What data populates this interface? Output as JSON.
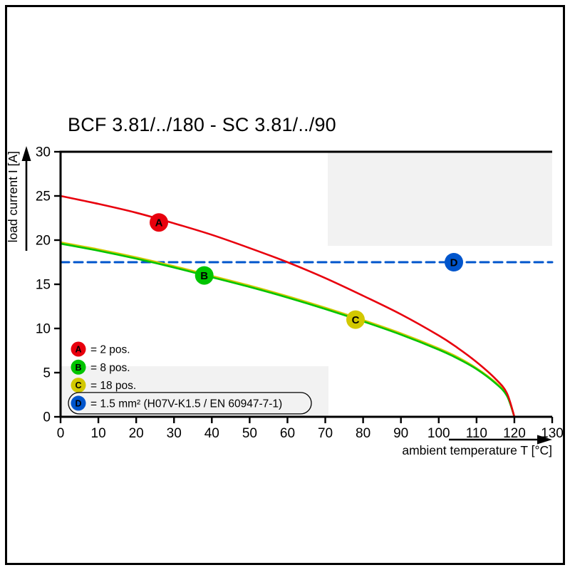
{
  "page": {
    "title": "BCF 3.81/../180 - SC 3.81/../90"
  },
  "chart_data": {
    "type": "line",
    "title": "BCF 3.81/../180 - SC 3.81/../90",
    "xlabel": "ambient temperature T [°C]",
    "ylabel": "load current I [A]",
    "xlim": [
      0,
      130
    ],
    "ylim": [
      0,
      30
    ],
    "x_ticks": [
      0,
      10,
      20,
      30,
      40,
      50,
      60,
      70,
      80,
      90,
      100,
      110,
      120,
      130
    ],
    "y_ticks": [
      0,
      5,
      10,
      15,
      20,
      25,
      30
    ],
    "grid": false,
    "legend_position": "bottom-left",
    "series": [
      {
        "name": "A",
        "label": "= 2 pos.",
        "color": "#e8000d",
        "style": "solid",
        "marker": {
          "x": 26,
          "y": 22
        },
        "points": [
          [
            0,
            25
          ],
          [
            10,
            24.1
          ],
          [
            20,
            23.1
          ],
          [
            30,
            21.9
          ],
          [
            40,
            20.6
          ],
          [
            50,
            19.1
          ],
          [
            60,
            17.5
          ],
          [
            70,
            15.7
          ],
          [
            80,
            13.7
          ],
          [
            90,
            11.6
          ],
          [
            100,
            9.2
          ],
          [
            105,
            7.8
          ],
          [
            110,
            6.2
          ],
          [
            115,
            4.3
          ],
          [
            118,
            2.7
          ],
          [
            120,
            0
          ]
        ]
      },
      {
        "name": "B",
        "label": "= 8 pos.",
        "color": "#00c400",
        "style": "solid",
        "marker": {
          "x": 38,
          "y": 16
        },
        "points": [
          [
            0,
            19.6
          ],
          [
            10,
            18.8
          ],
          [
            20,
            17.9
          ],
          [
            30,
            16.9
          ],
          [
            40,
            15.8
          ],
          [
            50,
            14.7
          ],
          [
            60,
            13.5
          ],
          [
            70,
            12.2
          ],
          [
            80,
            10.8
          ],
          [
            90,
            9.3
          ],
          [
            100,
            7.6
          ],
          [
            105,
            6.6
          ],
          [
            110,
            5.4
          ],
          [
            115,
            3.8
          ],
          [
            118,
            2.4
          ],
          [
            120,
            0
          ]
        ]
      },
      {
        "name": "C",
        "label": "= 18 pos.",
        "color": "#d2c800",
        "style": "solid",
        "marker": {
          "x": 78,
          "y": 11
        },
        "points": [
          [
            0,
            19.75
          ],
          [
            10,
            18.95
          ],
          [
            20,
            18.05
          ],
          [
            30,
            17.05
          ],
          [
            40,
            15.95
          ],
          [
            50,
            14.85
          ],
          [
            60,
            13.65
          ],
          [
            70,
            12.35
          ],
          [
            80,
            10.95
          ],
          [
            90,
            9.45
          ],
          [
            100,
            7.75
          ],
          [
            105,
            6.75
          ],
          [
            110,
            5.5
          ],
          [
            115,
            3.9
          ],
          [
            118,
            2.5
          ],
          [
            120,
            0
          ]
        ]
      },
      {
        "name": "D",
        "label": "= 1.5 mm² (H07V-K1.5 / EN 60947-7-1)",
        "color": "#0055cc",
        "style": "dashed",
        "boxed": true,
        "marker": {
          "x": 104,
          "y": 17.5
        },
        "points": [
          [
            0,
            17.5
          ],
          [
            130,
            17.5
          ]
        ]
      }
    ]
  }
}
